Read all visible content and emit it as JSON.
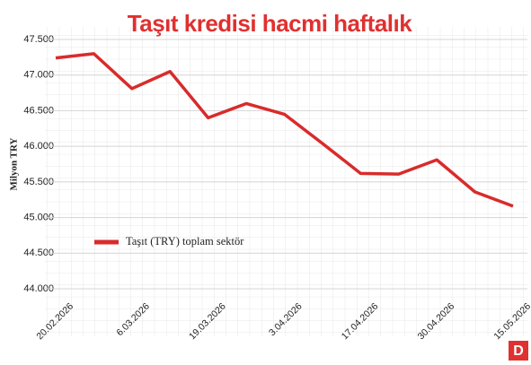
{
  "chart_data": {
    "type": "line",
    "title": "Taşıt kredisi hacmi haftalık",
    "y_label": "Milyon TRY",
    "categories": [
      "20.02.2026",
      null,
      "6.03.2026",
      null,
      "19.03.2026",
      null,
      "3.04.2026",
      null,
      "17.04.2026",
      null,
      "30.04.2026",
      null,
      "15.05.2026"
    ],
    "series": [
      {
        "name": "Taşıt (TRY) toplam sektör",
        "color": "#d92b2b",
        "values": [
          47240,
          47300,
          46810,
          47050,
          46400,
          46600,
          46450,
          46040,
          45620,
          45610,
          45810,
          45360,
          45160
        ]
      }
    ],
    "ylim": [
      44000,
      47500
    ],
    "yticks": [
      {
        "value": 44000,
        "label": "44.000"
      },
      {
        "value": 44500,
        "label": "44.500"
      },
      {
        "value": 45000,
        "label": "45.000"
      },
      {
        "value": 45500,
        "label": "45.500"
      },
      {
        "value": 46000,
        "label": "46.000"
      },
      {
        "value": 46500,
        "label": "46.500"
      },
      {
        "value": 47000,
        "label": "47.000"
      },
      {
        "value": 47500,
        "label": "47.500"
      }
    ],
    "grid": true,
    "legend": "left",
    "logo": "D"
  }
}
